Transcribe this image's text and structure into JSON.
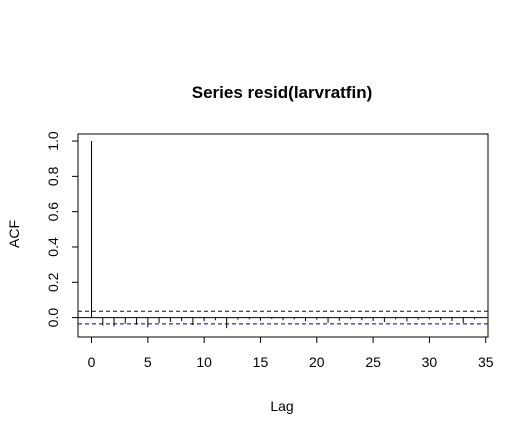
{
  "chart_data": {
    "type": "bar",
    "title": "Series  resid(larvratfin)",
    "xlabel": "Lag",
    "ylabel": "ACF",
    "xlim": [
      -1.2,
      35.2
    ],
    "ylim": [
      -0.11,
      1.04
    ],
    "x_ticks": [
      "0",
      "5",
      "10",
      "15",
      "20",
      "25",
      "30",
      "35"
    ],
    "y_ticks": [
      "0.0",
      "0.2",
      "0.4",
      "0.6",
      "0.8",
      "1.0"
    ],
    "confidence_bound": 0.036,
    "lags": [
      0,
      1,
      2,
      3,
      4,
      5,
      6,
      7,
      8,
      9,
      10,
      11,
      12,
      13,
      14,
      15,
      16,
      17,
      18,
      19,
      20,
      21,
      22,
      23,
      24,
      25,
      26,
      27,
      28,
      29,
      30,
      31,
      32,
      33,
      34
    ],
    "values": [
      1.0,
      -0.045,
      -0.05,
      -0.035,
      -0.04,
      -0.055,
      -0.03,
      -0.025,
      -0.02,
      -0.042,
      -0.02,
      -0.015,
      -0.06,
      -0.012,
      -0.01,
      -0.018,
      -0.008,
      -0.015,
      -0.01,
      -0.02,
      -0.012,
      -0.03,
      -0.018,
      -0.01,
      -0.015,
      -0.02,
      -0.025,
      -0.01,
      -0.022,
      -0.012,
      -0.01,
      -0.015,
      -0.02,
      -0.03,
      -0.01
    ],
    "colors": {
      "bar": "#000000",
      "bound": "#00008b",
      "frame": "#000000"
    }
  }
}
